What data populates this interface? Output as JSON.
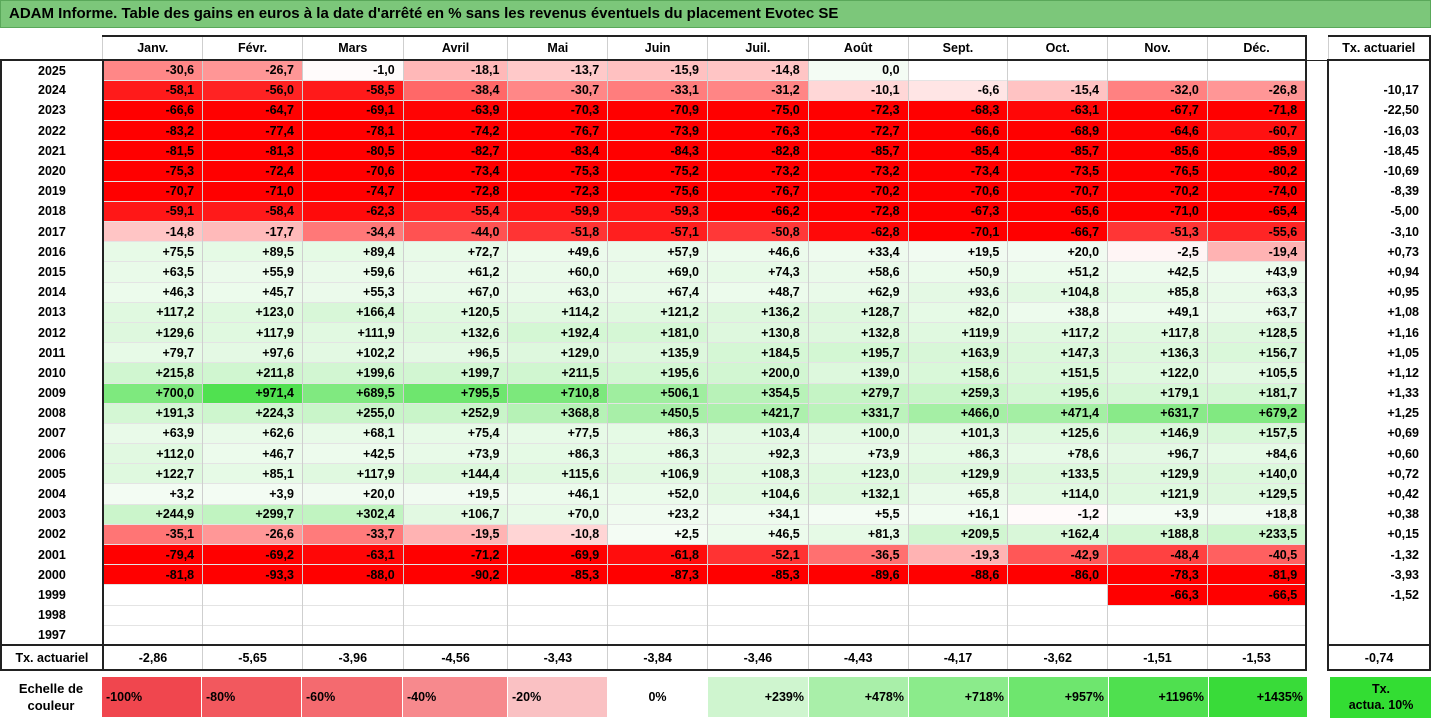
{
  "title": "ADAM Informe. Table des gains en euros à la date d'arrêté en % sans les revenus éventuels du placement Evotec SE",
  "months": [
    "Janv.",
    "Févr.",
    "Mars",
    "Avril",
    "Mai",
    "Juin",
    "Juil.",
    "Août",
    "Sept.",
    "Oct.",
    "Nov.",
    "Déc."
  ],
  "tx_header": "Tx. actuariel",
  "rows": [
    {
      "year": "2025",
      "values": [
        "-30,6",
        "-26,7",
        "-1,0",
        "-18,1",
        "-13,7",
        "-15,9",
        "-14,8",
        "0,0",
        "",
        "",
        "",
        ""
      ],
      "tx": ""
    },
    {
      "year": "2024",
      "values": [
        "-58,1",
        "-56,0",
        "-58,5",
        "-38,4",
        "-30,7",
        "-33,1",
        "-31,2",
        "-10,1",
        "-6,6",
        "-15,4",
        "-32,0",
        "-26,8"
      ],
      "tx": "-10,17"
    },
    {
      "year": "2023",
      "values": [
        "-66,6",
        "-64,7",
        "-69,1",
        "-63,9",
        "-70,3",
        "-70,9",
        "-75,0",
        "-72,3",
        "-68,3",
        "-63,1",
        "-67,7",
        "-71,8"
      ],
      "tx": "-22,50"
    },
    {
      "year": "2022",
      "values": [
        "-83,2",
        "-77,4",
        "-78,1",
        "-74,2",
        "-76,7",
        "-73,9",
        "-76,3",
        "-72,7",
        "-66,6",
        "-68,9",
        "-64,6",
        "-60,7"
      ],
      "tx": "-16,03"
    },
    {
      "year": "2021",
      "values": [
        "-81,5",
        "-81,3",
        "-80,5",
        "-82,7",
        "-83,4",
        "-84,3",
        "-82,8",
        "-85,7",
        "-85,4",
        "-85,7",
        "-85,6",
        "-85,9"
      ],
      "tx": "-18,45"
    },
    {
      "year": "2020",
      "values": [
        "-75,3",
        "-72,4",
        "-70,6",
        "-73,4",
        "-75,3",
        "-75,2",
        "-73,2",
        "-73,2",
        "-73,4",
        "-73,5",
        "-76,5",
        "-80,2"
      ],
      "tx": "-10,69"
    },
    {
      "year": "2019",
      "values": [
        "-70,7",
        "-71,0",
        "-74,7",
        "-72,8",
        "-72,3",
        "-75,6",
        "-76,7",
        "-70,2",
        "-70,6",
        "-70,7",
        "-70,2",
        "-74,0"
      ],
      "tx": "-8,39"
    },
    {
      "year": "2018",
      "values": [
        "-59,1",
        "-58,4",
        "-62,3",
        "-55,4",
        "-59,9",
        "-59,3",
        "-66,2",
        "-72,8",
        "-67,3",
        "-65,6",
        "-71,0",
        "-65,4"
      ],
      "tx": "-5,00"
    },
    {
      "year": "2017",
      "values": [
        "-14,8",
        "-17,7",
        "-34,4",
        "-44,0",
        "-51,8",
        "-57,1",
        "-50,8",
        "-62,8",
        "-70,1",
        "-66,7",
        "-51,3",
        "-55,6"
      ],
      "tx": "-3,10"
    },
    {
      "year": "2016",
      "values": [
        "+75,5",
        "+89,5",
        "+89,4",
        "+72,7",
        "+49,6",
        "+57,9",
        "+46,6",
        "+33,4",
        "+19,5",
        "+20,0",
        "-2,5",
        "-19,4"
      ],
      "tx": "+0,73"
    },
    {
      "year": "2015",
      "values": [
        "+63,5",
        "+55,9",
        "+59,6",
        "+61,2",
        "+60,0",
        "+69,0",
        "+74,3",
        "+58,6",
        "+50,9",
        "+51,2",
        "+42,5",
        "+43,9"
      ],
      "tx": "+0,94"
    },
    {
      "year": "2014",
      "values": [
        "+46,3",
        "+45,7",
        "+55,3",
        "+67,0",
        "+63,0",
        "+67,4",
        "+48,7",
        "+62,9",
        "+93,6",
        "+104,8",
        "+85,8",
        "+63,3"
      ],
      "tx": "+0,95"
    },
    {
      "year": "2013",
      "values": [
        "+117,2",
        "+123,0",
        "+166,4",
        "+120,5",
        "+114,2",
        "+121,2",
        "+136,2",
        "+128,7",
        "+82,0",
        "+38,8",
        "+49,1",
        "+63,7"
      ],
      "tx": "+1,08"
    },
    {
      "year": "2012",
      "values": [
        "+129,6",
        "+117,9",
        "+111,9",
        "+132,6",
        "+192,4",
        "+181,0",
        "+130,8",
        "+132,8",
        "+119,9",
        "+117,2",
        "+117,8",
        "+128,5"
      ],
      "tx": "+1,16"
    },
    {
      "year": "2011",
      "values": [
        "+79,7",
        "+97,6",
        "+102,2",
        "+96,5",
        "+129,0",
        "+135,9",
        "+184,5",
        "+195,7",
        "+163,9",
        "+147,3",
        "+136,3",
        "+156,7"
      ],
      "tx": "+1,05"
    },
    {
      "year": "2010",
      "values": [
        "+215,8",
        "+211,8",
        "+199,6",
        "+199,7",
        "+211,5",
        "+195,6",
        "+200,0",
        "+139,0",
        "+158,6",
        "+151,5",
        "+122,0",
        "+105,5"
      ],
      "tx": "+1,12"
    },
    {
      "year": "2009",
      "values": [
        "+700,0",
        "+971,4",
        "+689,5",
        "+795,5",
        "+710,8",
        "+506,1",
        "+354,5",
        "+279,7",
        "+259,3",
        "+195,6",
        "+179,1",
        "+181,7"
      ],
      "tx": "+1,33"
    },
    {
      "year": "2008",
      "values": [
        "+191,3",
        "+224,3",
        "+255,0",
        "+252,9",
        "+368,8",
        "+450,5",
        "+421,7",
        "+331,7",
        "+466,0",
        "+471,4",
        "+631,7",
        "+679,2"
      ],
      "tx": "+1,25"
    },
    {
      "year": "2007",
      "values": [
        "+63,9",
        "+62,6",
        "+68,1",
        "+75,4",
        "+77,5",
        "+86,3",
        "+103,4",
        "+100,0",
        "+101,3",
        "+125,6",
        "+146,9",
        "+157,5"
      ],
      "tx": "+0,69"
    },
    {
      "year": "2006",
      "values": [
        "+112,0",
        "+46,7",
        "+42,5",
        "+73,9",
        "+86,3",
        "+86,3",
        "+92,3",
        "+73,9",
        "+86,3",
        "+78,6",
        "+96,7",
        "+84,6"
      ],
      "tx": "+0,60"
    },
    {
      "year": "2005",
      "values": [
        "+122,7",
        "+85,1",
        "+117,9",
        "+144,4",
        "+115,6",
        "+106,9",
        "+108,3",
        "+123,0",
        "+129,9",
        "+133,5",
        "+129,9",
        "+140,0"
      ],
      "tx": "+0,72"
    },
    {
      "year": "2004",
      "values": [
        "+3,2",
        "+3,9",
        "+20,0",
        "+19,5",
        "+46,1",
        "+52,0",
        "+104,6",
        "+132,1",
        "+65,8",
        "+114,0",
        "+121,9",
        "+129,5"
      ],
      "tx": "+0,42"
    },
    {
      "year": "2003",
      "values": [
        "+244,9",
        "+299,7",
        "+302,4",
        "+106,7",
        "+70,0",
        "+23,2",
        "+34,1",
        "+5,5",
        "+16,1",
        "-1,2",
        "+3,9",
        "+18,8"
      ],
      "tx": "+0,38"
    },
    {
      "year": "2002",
      "values": [
        "-35,1",
        "-26,6",
        "-33,7",
        "-19,5",
        "-10,8",
        "+2,5",
        "+46,5",
        "+81,3",
        "+209,5",
        "+162,4",
        "+188,8",
        "+233,5"
      ],
      "tx": "+0,15"
    },
    {
      "year": "2001",
      "values": [
        "-79,4",
        "-69,2",
        "-63,1",
        "-71,2",
        "-69,9",
        "-61,8",
        "-52,1",
        "-36,5",
        "-19,3",
        "-42,9",
        "-48,4",
        "-40,5"
      ],
      "tx": "-1,32"
    },
    {
      "year": "2000",
      "values": [
        "-81,8",
        "-93,3",
        "-88,0",
        "-90,2",
        "-85,3",
        "-87,3",
        "-85,3",
        "-89,6",
        "-88,6",
        "-86,0",
        "-78,3",
        "-81,9"
      ],
      "tx": "-3,93"
    },
    {
      "year": "1999",
      "values": [
        "",
        "",
        "",
        "",
        "",
        "",
        "",
        "",
        "",
        "",
        "-66,3",
        "-66,5"
      ],
      "tx": "-1,52"
    },
    {
      "year": "1998",
      "values": [
        "",
        "",
        "",
        "",
        "",
        "",
        "",
        "",
        "",
        "",
        "",
        ""
      ],
      "tx": ""
    },
    {
      "year": "1997",
      "values": [
        "",
        "",
        "",
        "",
        "",
        "",
        "",
        "",
        "",
        "",
        "",
        ""
      ],
      "tx": ""
    }
  ],
  "footer": {
    "label": "Tx. actuariel",
    "values": [
      "-2,86",
      "-5,65",
      "-3,96",
      "-4,56",
      "-3,43",
      "-3,84",
      "-3,46",
      "-4,43",
      "-4,17",
      "-3,62",
      "-1,51",
      "-1,53"
    ],
    "tx": "-0,74"
  },
  "scale": {
    "label_line1": "Echelle de",
    "label_line2": "couleur",
    "items": [
      {
        "text": "-100%",
        "color": "#F0464E",
        "align": "l"
      },
      {
        "text": "-80%",
        "color": "#F2585E",
        "align": "l"
      },
      {
        "text": "-60%",
        "color": "#F46A6F",
        "align": "l"
      },
      {
        "text": "-40%",
        "color": "#F7898D",
        "align": "l"
      },
      {
        "text": "-20%",
        "color": "#FAC1C3",
        "align": "l"
      },
      {
        "text": "0%",
        "color": "#FFFFFF",
        "align": "c"
      },
      {
        "text": "+239%",
        "color": "#CFF5CF",
        "align": "r"
      },
      {
        "text": "+478%",
        "color": "#A9EFA9",
        "align": "r"
      },
      {
        "text": "+718%",
        "color": "#8BEB8B",
        "align": "r"
      },
      {
        "text": "+957%",
        "color": "#6EE66E",
        "align": "r"
      },
      {
        "text": "+1196%",
        "color": "#4FE04F",
        "align": "r"
      },
      {
        "text": "+1435%",
        "color": "#39DB39",
        "align": "r"
      }
    ],
    "tx10_line1": "Tx.",
    "tx10_line2": "actua. 10%",
    "tx10_color": "#33DD33"
  }
}
